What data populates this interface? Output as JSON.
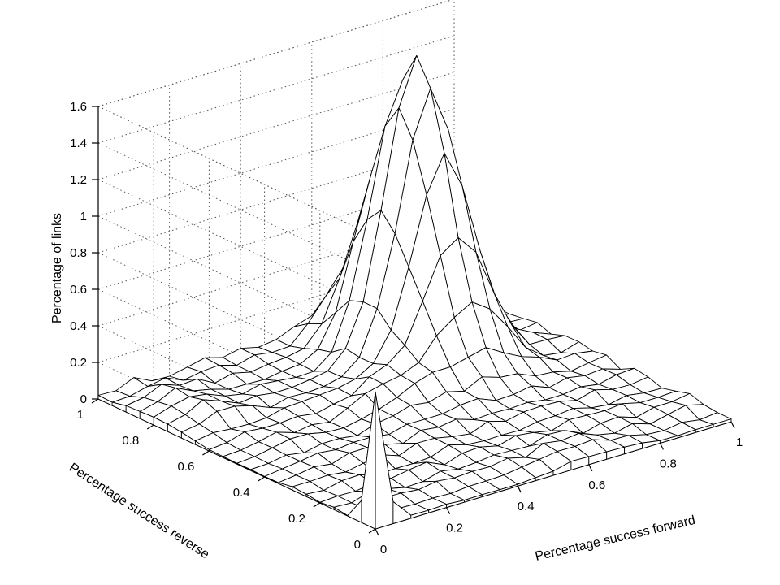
{
  "chart_data": {
    "type": "surface3d",
    "title": "",
    "xlabel": "Percentage success forward",
    "ylabel": "Percentage success reverse",
    "zlabel": "Percentage of links",
    "xlim": [
      0,
      1
    ],
    "ylim": [
      0,
      1
    ],
    "zlim": [
      0,
      1.6
    ],
    "x_ticks": [
      "0",
      "0.2",
      "0.4",
      "0.6",
      "0.8",
      "1"
    ],
    "y_ticks": [
      "0",
      "0.2",
      "0.4",
      "0.6",
      "0.8",
      "1"
    ],
    "z_ticks": [
      "0",
      "0.2",
      "0.4",
      "0.6",
      "0.8",
      "1",
      "1.2",
      "1.4",
      "1.6"
    ],
    "grid": true,
    "grid_resolution": 21,
    "surface": {
      "peak_x": 0.7,
      "peak_y": 0.75,
      "peak_z": 1.6,
      "corner_spike_x": 0.0,
      "corner_spike_y": 0.0,
      "corner_spike_z": 0.75
    }
  }
}
